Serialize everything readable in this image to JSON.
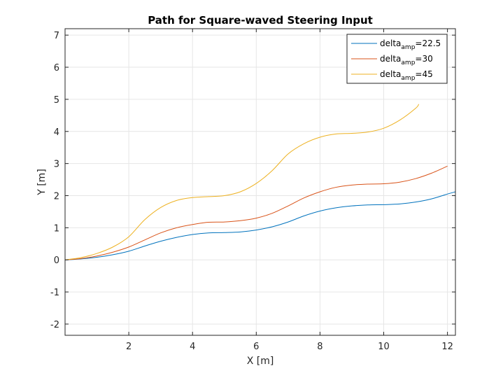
{
  "chart_data": {
    "type": "line",
    "title": "Path for Square-waved Steering Input",
    "xlabel": "X [m]",
    "ylabel": "Y [m]",
    "xlim": [
      0.0,
      12.25
    ],
    "ylim": [
      -2.35,
      7.2
    ],
    "xticks": [
      "2",
      "4",
      "6",
      "8",
      "10",
      "12"
    ],
    "yticks": [
      "-2",
      "-1",
      "0",
      "1",
      "2",
      "3",
      "4",
      "5",
      "6",
      "7"
    ],
    "grid": true,
    "legend_position": "top-right",
    "series": [
      {
        "name": "delta_amp=22.5",
        "legend_main": "delta",
        "legend_sub": "amp",
        "legend_value": "=22.5",
        "color": "#0072BD",
        "x": [
          0.0,
          0.5,
          1.0,
          1.5,
          2.0,
          2.5,
          3.0,
          3.5,
          4.0,
          4.5,
          5.0,
          5.5,
          6.0,
          6.5,
          7.0,
          7.5,
          8.0,
          8.5,
          9.0,
          9.5,
          10.0,
          10.5,
          11.0,
          11.5,
          12.0,
          12.25
        ],
        "y": [
          0.0,
          0.03,
          0.08,
          0.16,
          0.27,
          0.43,
          0.58,
          0.7,
          0.79,
          0.84,
          0.85,
          0.87,
          0.93,
          1.03,
          1.18,
          1.37,
          1.52,
          1.62,
          1.68,
          1.71,
          1.72,
          1.74,
          1.8,
          1.9,
          2.05,
          2.12
        ]
      },
      {
        "name": "delta_amp=30",
        "legend_main": "delta",
        "legend_sub": "amp",
        "legend_value": "=30",
        "color": "#D95319",
        "x": [
          0.0,
          0.5,
          1.0,
          1.5,
          2.0,
          2.5,
          3.0,
          3.5,
          4.0,
          4.5,
          5.0,
          5.5,
          6.0,
          6.5,
          7.0,
          7.5,
          8.0,
          8.5,
          9.0,
          9.5,
          10.0,
          10.5,
          11.0,
          11.5,
          12.0
        ],
        "y": [
          0.0,
          0.04,
          0.12,
          0.24,
          0.4,
          0.62,
          0.84,
          1.0,
          1.1,
          1.17,
          1.18,
          1.22,
          1.3,
          1.45,
          1.68,
          1.93,
          2.12,
          2.26,
          2.33,
          2.36,
          2.37,
          2.42,
          2.53,
          2.7,
          2.92
        ]
      },
      {
        "name": "delta_amp=45",
        "legend_main": "delta",
        "legend_sub": "amp",
        "legend_value": "=45",
        "color": "#EDB120",
        "x": [
          0.0,
          0.5,
          1.0,
          1.5,
          2.0,
          2.5,
          3.0,
          3.5,
          4.0,
          4.5,
          5.0,
          5.5,
          6.0,
          6.5,
          7.0,
          7.5,
          8.0,
          8.5,
          9.0,
          9.5,
          10.0,
          10.5,
          11.0,
          11.1
        ],
        "y": [
          0.0,
          0.07,
          0.2,
          0.4,
          0.72,
          1.25,
          1.63,
          1.85,
          1.94,
          1.97,
          2.0,
          2.12,
          2.38,
          2.78,
          3.3,
          3.62,
          3.82,
          3.92,
          3.94,
          3.98,
          4.1,
          4.35,
          4.72,
          4.85
        ]
      }
    ]
  }
}
